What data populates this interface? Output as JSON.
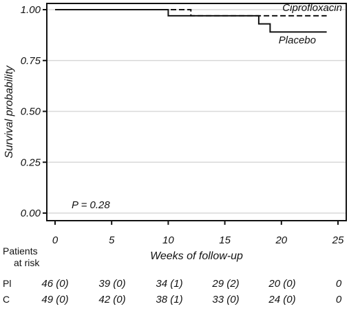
{
  "chart_data": {
    "type": "line",
    "subtype": "kaplan-meier step",
    "xlabel": "Weeks of follow-up",
    "ylabel": "Survival probability",
    "xlim": [
      0,
      25
    ],
    "ylim": [
      0,
      1
    ],
    "x_ticks": [
      "0",
      "5",
      "10",
      "15",
      "20",
      "25"
    ],
    "y_ticks": [
      "0.00",
      "0.25",
      "0.50",
      "0.75",
      "1.00"
    ],
    "grid": "horizontal",
    "series": [
      {
        "name": "Ciprofloxacin",
        "style": "dashed",
        "color": "#111111",
        "points": [
          [
            0,
            1.0
          ],
          [
            12,
            1.0
          ],
          [
            12,
            0.97
          ],
          [
            24,
            0.97
          ]
        ]
      },
      {
        "name": "Placebo",
        "style": "solid",
        "color": "#111111",
        "points": [
          [
            0,
            1.0
          ],
          [
            10,
            1.0
          ],
          [
            10,
            0.97
          ],
          [
            18,
            0.97
          ],
          [
            18,
            0.93
          ],
          [
            19,
            0.93
          ],
          [
            19,
            0.89
          ],
          [
            24,
            0.89
          ]
        ]
      }
    ],
    "annotation": "P = 0.28"
  },
  "risk_table": {
    "header": [
      "Patients",
      "at risk"
    ],
    "rows": [
      {
        "label": "Pl",
        "values": [
          "46 (0)",
          "39 (0)",
          "34 (1)",
          "29 (2)",
          "20 (0)",
          "0"
        ]
      },
      {
        "label": "C",
        "values": [
          "49 (0)",
          "42 (0)",
          "38 (1)",
          "33 (0)",
          "24 (0)",
          "0"
        ]
      }
    ]
  },
  "colors": {
    "axis": "#111111",
    "grid": "#d9d9d9",
    "background": "#ffffff"
  }
}
